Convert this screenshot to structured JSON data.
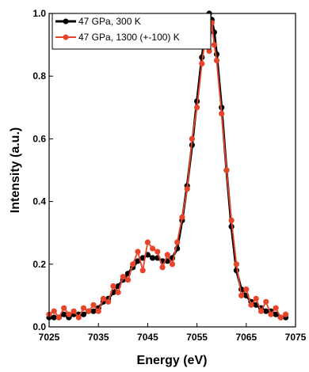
{
  "chart_data": {
    "type": "line",
    "title": "",
    "xlabel": "Energy (eV)",
    "ylabel": "Intensity (a.u.)",
    "xlim": [
      7025,
      7075
    ],
    "ylim": [
      0.0,
      1.0
    ],
    "xticks": [
      7025,
      7035,
      7045,
      7055,
      7065,
      7075
    ],
    "yticks": [
      0.0,
      0.2,
      0.4,
      0.6,
      0.8,
      1.0
    ],
    "ytick_labels": [
      "0.0",
      "0.2",
      "0.4",
      "0.6",
      "0.8",
      "1.0"
    ],
    "grid": false,
    "legend_position": "top-left",
    "series": [
      {
        "name": "47 GPa, 300 K",
        "color": "#000000",
        "marker": "circle",
        "x": [
          7025,
          7026,
          7027,
          7028,
          7029,
          7030,
          7031,
          7032,
          7033,
          7034,
          7035,
          7036,
          7037,
          7038,
          7039,
          7040,
          7041,
          7042,
          7043,
          7044,
          7045,
          7046,
          7047,
          7048,
          7049,
          7050,
          7051,
          7052,
          7053,
          7054,
          7055,
          7056,
          7057,
          7057.5,
          7058,
          7058.5,
          7059,
          7060,
          7061,
          7062,
          7063,
          7064,
          7065,
          7066,
          7067,
          7068,
          7069,
          7070,
          7071,
          7072,
          7073
        ],
        "y": [
          0.03,
          0.03,
          0.03,
          0.04,
          0.03,
          0.04,
          0.04,
          0.04,
          0.05,
          0.05,
          0.06,
          0.08,
          0.09,
          0.11,
          0.13,
          0.15,
          0.17,
          0.19,
          0.21,
          0.22,
          0.23,
          0.22,
          0.22,
          0.21,
          0.21,
          0.22,
          0.25,
          0.34,
          0.45,
          0.58,
          0.72,
          0.86,
          0.97,
          1.0,
          0.98,
          0.94,
          0.87,
          0.7,
          0.5,
          0.32,
          0.18,
          0.12,
          0.1,
          0.08,
          0.07,
          0.06,
          0.05,
          0.05,
          0.04,
          0.03,
          0.03
        ]
      },
      {
        "name": "47 GPa, 1300 (+-100) K",
        "color": "#e8442a",
        "marker": "circle",
        "x": [
          7025,
          7026,
          7027,
          7028,
          7029,
          7030,
          7031,
          7032,
          7033,
          7034,
          7035,
          7036,
          7037,
          7038,
          7039,
          7040,
          7041,
          7042,
          7043,
          7044,
          7045,
          7046,
          7047,
          7048,
          7049,
          7050,
          7051,
          7052,
          7053,
          7054,
          7055,
          7056,
          7057,
          7057.5,
          7058,
          7058.5,
          7059,
          7060,
          7061,
          7062,
          7063,
          7064,
          7065,
          7066,
          7067,
          7068,
          7069,
          7070,
          7071,
          7072,
          7073
        ],
        "y": [
          0.04,
          0.05,
          0.03,
          0.06,
          0.04,
          0.05,
          0.03,
          0.06,
          0.05,
          0.07,
          0.05,
          0.09,
          0.08,
          0.13,
          0.11,
          0.16,
          0.15,
          0.2,
          0.24,
          0.18,
          0.27,
          0.25,
          0.24,
          0.19,
          0.23,
          0.2,
          0.27,
          0.35,
          0.44,
          0.6,
          0.7,
          0.84,
          0.96,
          0.88,
          0.97,
          0.9,
          0.85,
          0.68,
          0.5,
          0.34,
          0.2,
          0.1,
          0.12,
          0.07,
          0.09,
          0.05,
          0.08,
          0.04,
          0.06,
          0.03,
          0.04
        ]
      }
    ]
  }
}
